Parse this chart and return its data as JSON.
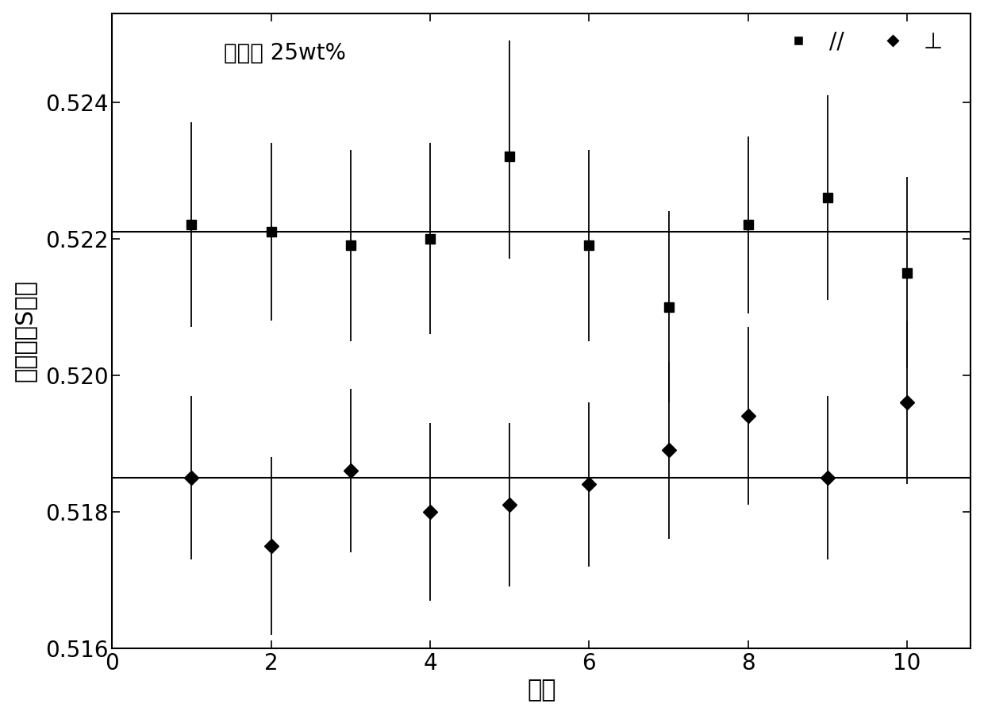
{
  "x": [
    1,
    2,
    3,
    4,
    5,
    6,
    7,
    8,
    9,
    10
  ],
  "square_y": [
    0.5222,
    0.5221,
    0.5219,
    0.522,
    0.5232,
    0.5219,
    0.521,
    0.5222,
    0.5226,
    0.5215
  ],
  "square_yerr_lo": [
    0.0015,
    0.0013,
    0.0014,
    0.0014,
    0.0015,
    0.0014,
    0.0014,
    0.0013,
    0.0015,
    0.0014
  ],
  "square_yerr_hi": [
    0.0015,
    0.0013,
    0.0014,
    0.0014,
    0.0017,
    0.0014,
    0.0014,
    0.0013,
    0.0015,
    0.0014
  ],
  "diamond_y": [
    0.5185,
    0.5175,
    0.5186,
    0.518,
    0.5181,
    0.5184,
    0.5189,
    0.5194,
    0.5185,
    0.5196
  ],
  "diamond_yerr_lo": [
    0.0012,
    0.0013,
    0.0012,
    0.0013,
    0.0012,
    0.0012,
    0.0013,
    0.0013,
    0.0012,
    0.0012
  ],
  "diamond_yerr_hi": [
    0.0012,
    0.0013,
    0.0012,
    0.0013,
    0.0012,
    0.0012,
    0.0013,
    0.0013,
    0.0012,
    0.0012
  ],
  "hline1": 0.5221,
  "hline2": 0.5185,
  "xlim": [
    0,
    10.8
  ],
  "ylim": [
    0.516,
    0.5253
  ],
  "yticks": [
    0.516,
    0.518,
    0.52,
    0.522,
    0.524
  ],
  "xticks": [
    0,
    2,
    4,
    6,
    8,
    10
  ],
  "xlabel": "次数",
  "ylabel": "线型参数S参数",
  "legend_text": "样品： 25wt%",
  "legend_square": "//",
  "legend_diamond": "⊥",
  "marker_color": "#000000",
  "line_color": "#000000",
  "background_color": "#ffffff",
  "title_fontsize": 20,
  "label_fontsize": 22,
  "tick_fontsize": 20
}
